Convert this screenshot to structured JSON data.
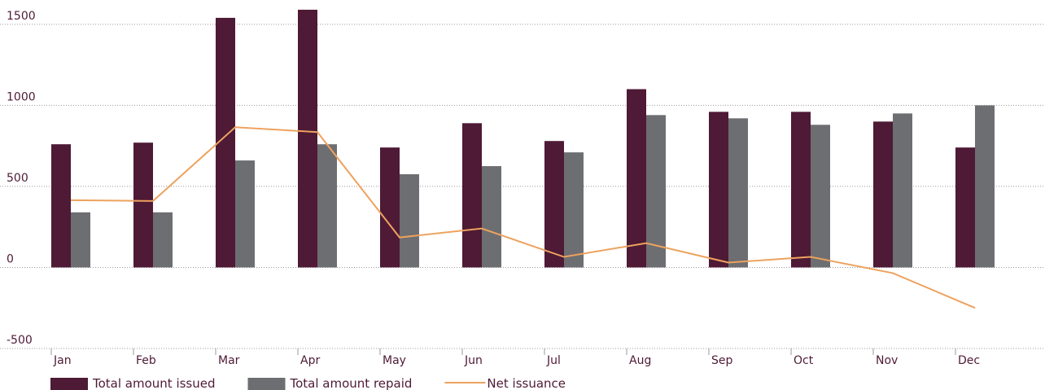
{
  "chart_data": {
    "type": "bar",
    "categories": [
      "Jan",
      "Feb",
      "Mar",
      "Apr",
      "May",
      "Jun",
      "Jul",
      "Aug",
      "Sep",
      "Oct",
      "Nov",
      "Dec"
    ],
    "series": [
      {
        "name": "Total amount issued",
        "color": "#4e1a35",
        "values": [
          760,
          770,
          1540,
          1590,
          740,
          890,
          780,
          1100,
          960,
          960,
          900,
          740
        ]
      },
      {
        "name": "Total amount repaid",
        "color": "#6d6e71",
        "values": [
          340,
          340,
          660,
          760,
          575,
          625,
          710,
          940,
          920,
          880,
          950,
          1000
        ]
      },
      {
        "name": "Net issuance",
        "type": "line",
        "color": "#eda25e",
        "values": [
          415,
          410,
          865,
          835,
          185,
          240,
          65,
          150,
          30,
          65,
          -35,
          -250
        ]
      }
    ],
    "ylim": [
      -500,
      1650
    ],
    "yticks": [
      -500,
      0,
      500,
      1000,
      1500
    ],
    "grid": true,
    "legend": "bottom"
  }
}
